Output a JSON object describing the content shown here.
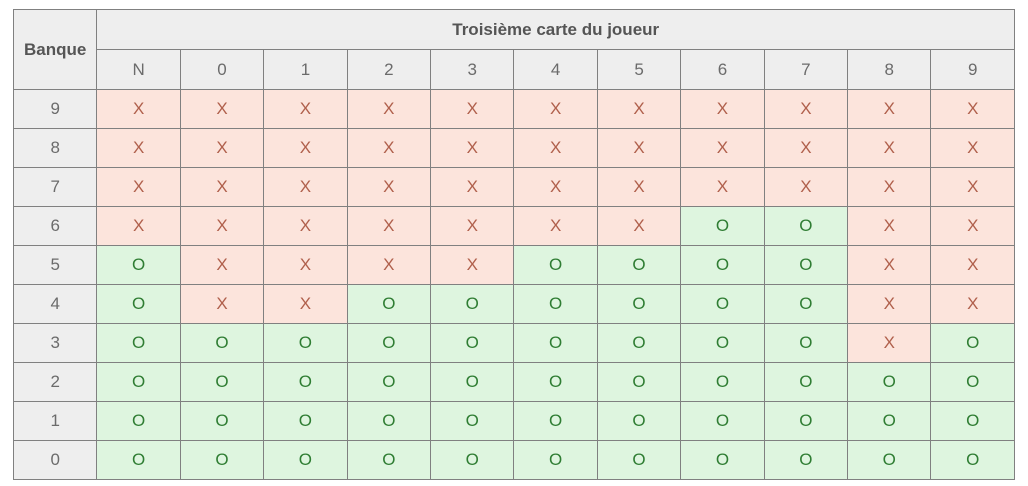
{
  "chart_data": {
    "type": "table",
    "title": "Troisième carte du joueur",
    "corner_label": "Banque",
    "columns": [
      "N",
      "0",
      "1",
      "2",
      "3",
      "4",
      "5",
      "6",
      "7",
      "8",
      "9"
    ],
    "row_labels": [
      "9",
      "8",
      "7",
      "6",
      "5",
      "4",
      "3",
      "2",
      "1",
      "0"
    ],
    "cell_values": [
      [
        "X",
        "X",
        "X",
        "X",
        "X",
        "X",
        "X",
        "X",
        "X",
        "X",
        "X"
      ],
      [
        "X",
        "X",
        "X",
        "X",
        "X",
        "X",
        "X",
        "X",
        "X",
        "X",
        "X"
      ],
      [
        "X",
        "X",
        "X",
        "X",
        "X",
        "X",
        "X",
        "X",
        "X",
        "X",
        "X"
      ],
      [
        "X",
        "X",
        "X",
        "X",
        "X",
        "X",
        "X",
        "O",
        "O",
        "X",
        "X"
      ],
      [
        "O",
        "X",
        "X",
        "X",
        "X",
        "O",
        "O",
        "O",
        "O",
        "X",
        "X"
      ],
      [
        "O",
        "X",
        "X",
        "O",
        "O",
        "O",
        "O",
        "O",
        "O",
        "X",
        "X"
      ],
      [
        "O",
        "O",
        "O",
        "O",
        "O",
        "O",
        "O",
        "O",
        "O",
        "X",
        "O"
      ],
      [
        "O",
        "O",
        "O",
        "O",
        "O",
        "O",
        "O",
        "O",
        "O",
        "O",
        "O"
      ],
      [
        "O",
        "O",
        "O",
        "O",
        "O",
        "O",
        "O",
        "O",
        "O",
        "O",
        "O"
      ],
      [
        "O",
        "O",
        "O",
        "O",
        "O",
        "O",
        "O",
        "O",
        "O",
        "O",
        "O"
      ]
    ],
    "symbols": {
      "draw_symbol": "X",
      "stand_symbol": "O"
    }
  },
  "colors": {
    "draw_cell_bg": "#fce4dc",
    "draw_cell_text": "#b0604c",
    "stand_cell_bg": "#def5df",
    "stand_cell_text": "#2f7d33",
    "header_bg": "#eeeeee",
    "header_text": "#555555",
    "label_text": "#6b6b6b",
    "grid_border": "#808080",
    "page_bg": "#ffffff"
  }
}
